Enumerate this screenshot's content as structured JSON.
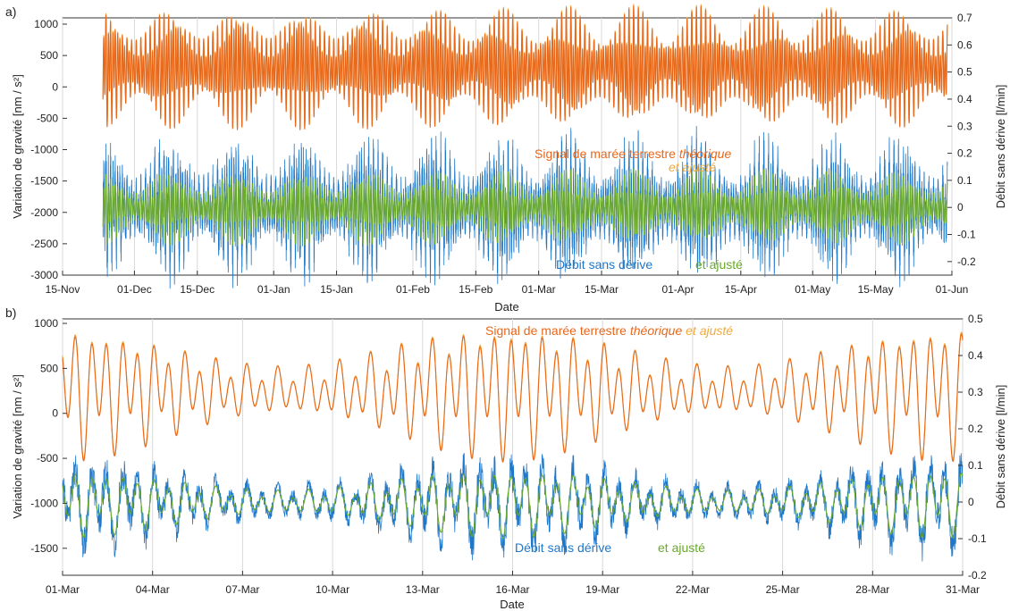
{
  "chart_data": [
    {
      "panel": "a)",
      "type": "line",
      "xlabel": "Date",
      "ylabel_left": "Variation de gravité [nm / s²]",
      "ylabel_right": "Débit sans dérive [l/min]",
      "xlim": [
        "2020-11-15",
        "2021-06-01"
      ],
      "ylim_left": [
        -3000,
        1100
      ],
      "ylim_right": [
        -0.25,
        0.7
      ],
      "x_ticks": [
        "15-Nov",
        "01-Dec",
        "15-Dec",
        "01-Jan",
        "15-Jan",
        "01-Feb",
        "15-Feb",
        "01-Mar",
        "15-Mar",
        "01-Apr",
        "15-Apr",
        "01-May",
        "15-May",
        "01-Jun"
      ],
      "y_ticks_left": [
        -3000,
        -2500,
        -2000,
        -1500,
        -1000,
        -500,
        0,
        500,
        1000
      ],
      "y_ticks_right": [
        -0.2,
        -0.1,
        0,
        0.1,
        0.2,
        0.3,
        0.4,
        0.5,
        0.6,
        0.7
      ],
      "grid": "vertical",
      "series": [
        {
          "name": "Signal de marée terrestre théorique",
          "axis": "left",
          "color": "#f2a93b",
          "mean": 300,
          "amplitude_range": [
            420,
            900
          ],
          "period_hours": 12.4
        },
        {
          "name": "et ajusté",
          "axis": "left",
          "color": "#e8671b",
          "mean": 300,
          "amplitude_range": [
            420,
            900
          ],
          "period_hours": 12.4
        },
        {
          "name": "Débit sans dérive",
          "axis": "right",
          "color": "#1f77c8",
          "mean": 0.0,
          "amplitude_range": [
            0.08,
            0.2
          ],
          "period_hours": 12.4
        },
        {
          "name": "et ajusté",
          "axis": "right",
          "color": "#6aa92a",
          "mean": 0.0,
          "amplitude_range": [
            0.05,
            0.13
          ],
          "period_hours": 12.4
        }
      ],
      "data_start": "2020-11-24",
      "data_end": "2021-05-31"
    },
    {
      "panel": "b)",
      "type": "line",
      "xlabel": "Date",
      "ylabel_left": "Variation de gravité [nm / s²]",
      "ylabel_right": "Débit sans dérive [l/min]",
      "xlim": [
        "2021-03-01",
        "2021-03-31"
      ],
      "ylim_left": [
        -1800,
        1050
      ],
      "ylim_right": [
        -0.2,
        0.5
      ],
      "x_ticks": [
        "01-Mar",
        "04-Mar",
        "07-Mar",
        "10-Mar",
        "13-Mar",
        "16-Mar",
        "19-Mar",
        "22-Mar",
        "25-Mar",
        "28-Mar",
        "31-Mar"
      ],
      "y_ticks_left": [
        -1500,
        -1000,
        -500,
        0,
        500,
        1000
      ],
      "y_ticks_right": [
        -0.2,
        -0.1,
        0,
        0.1,
        0.2,
        0.3,
        0.4,
        0.5
      ],
      "grid": "vertical",
      "series": [
        {
          "name": "Signal de marée terrestre théorique",
          "axis": "left",
          "color": "#f2a93b",
          "mean": 250,
          "amplitude_range": [
            250,
            720
          ],
          "period_hours": 12.4
        },
        {
          "name": "et ajusté",
          "axis": "left",
          "color": "#e8671b",
          "mean": 250,
          "amplitude_range": [
            250,
            720
          ],
          "period_hours": 12.4
        },
        {
          "name": "Débit sans dérive",
          "axis": "right",
          "color": "#1f77c8",
          "mean": 0.0,
          "amplitude_range": [
            0.04,
            0.11
          ],
          "period_hours": 12.4
        },
        {
          "name": "et ajusté",
          "axis": "right",
          "color": "#6aa92a",
          "mean": 0.0,
          "amplitude_range": [
            0.03,
            0.09
          ],
          "period_hours": 12.4
        }
      ]
    }
  ],
  "annotations": {
    "a": {
      "tide_prefix": "Signal de marée terrestre ",
      "tide_theo": "théorique",
      "tide_adj": "et ajusté",
      "flow": "Débit sans dérive",
      "flow_adj": "et ajusté"
    },
    "b": {
      "tide_prefix": "Signal de marée terrestre ",
      "tide_theo": "théorique",
      "tide_adj": " et ajusté",
      "flow": "Débit sans dérive",
      "flow_adj": "et ajusté"
    }
  },
  "colors": {
    "tide_theoretical": "#f2a93b",
    "tide_adjusted": "#e8671b",
    "flow": "#1f77c8",
    "flow_adjusted": "#6aa92a"
  }
}
